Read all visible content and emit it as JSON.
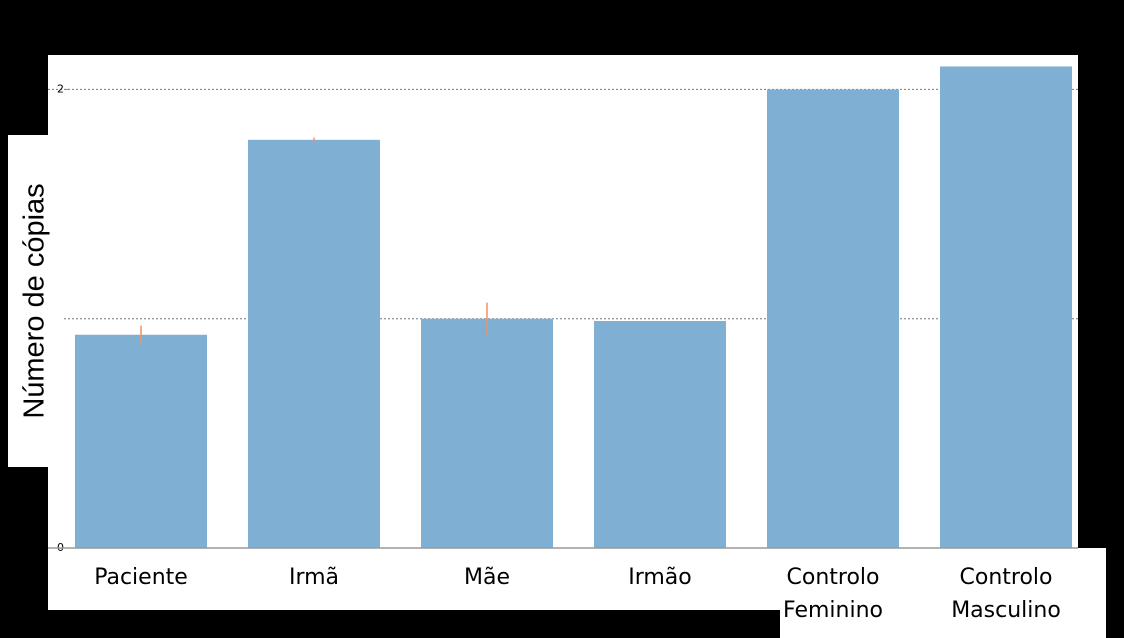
{
  "chart_data": {
    "type": "bar",
    "ylabel": "Número de cópias",
    "categories": [
      "Paciente",
      "Irmã",
      "Mãe",
      "Irmão",
      "Controlo Feminino",
      "Controlo Masculino"
    ],
    "values": [
      0.93,
      1.78,
      1.0,
      0.99,
      2.0,
      2.1
    ],
    "errors": [
      0.04,
      0.01,
      0.07,
      null,
      null,
      null
    ],
    "color": "#7fb0d4",
    "error_color": "#f4915f",
    "ylim": [
      0,
      2.15
    ],
    "yticks": [
      0,
      2
    ],
    "gridlines": [
      1,
      2
    ],
    "grid": true
  }
}
